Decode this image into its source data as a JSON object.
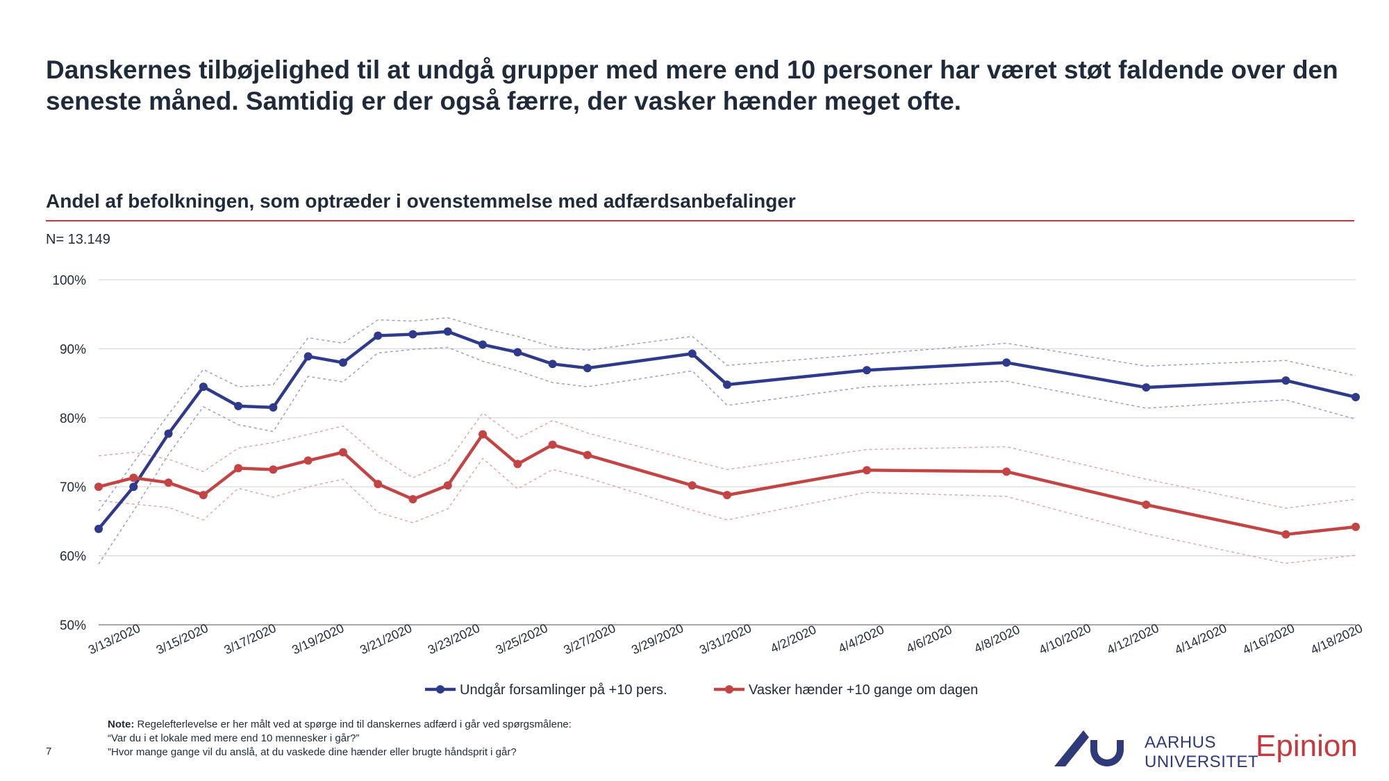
{
  "slide": {
    "headline": "Danskernes tilbøjelighed til at undgå grupper med mere end 10 personer har været støt faldende over den seneste måned. Samtidig er der også færre, der vasker hænder meget ofte.",
    "subtitle": "Andel af befolkningen, som optræder i ovenstemmelse med adfærdsanbefalinger",
    "n_label": "N= 13.149",
    "note_label": "Note:",
    "note_text": "Regelefterlevelse er her målt ved at spørge ind til danskernes adfærd i går ved spørgsmålene:",
    "note_q1": "“Var du i et lokale med mere end 10 mennesker i går?”",
    "note_q2": "”Hvor mange gange vil du anslå, at du vaskede dine hænder eller brugte håndsprit i går?",
    "page_number": "7",
    "logo_au_line1": "AARHUS",
    "logo_au_line2": "UNIVERSITET",
    "logo_epinion": "Epinion"
  },
  "colors": {
    "series1": "#2e3a8c",
    "series2": "#c44343",
    "rule": "#c9373a",
    "grid": "#d9d9d9",
    "ci1": "#9aa0c8",
    "ci2": "#e5a6a6"
  },
  "chart_data": {
    "type": "line",
    "x_tick_labels": [
      "3/13/2020",
      "3/15/2020",
      "3/17/2020",
      "3/19/2020",
      "3/21/2020",
      "3/23/2020",
      "3/25/2020",
      "3/27/2020",
      "3/29/2020",
      "3/31/2020",
      "4/2/2020",
      "4/4/2020",
      "4/6/2020",
      "4/8/2020",
      "4/10/2020",
      "4/12/2020",
      "4/14/2020",
      "4/16/2020",
      "4/18/2020"
    ],
    "x_range": [
      "2020-03-13",
      "2020-04-18"
    ],
    "y_ticks": [
      "50%",
      "60%",
      "70%",
      "80%",
      "90%",
      "100%"
    ],
    "ylim": [
      50,
      100
    ],
    "grid": true,
    "legend_position": "bottom",
    "series": [
      {
        "name": "Undgår forsamlinger på +10 pers.",
        "points": [
          [
            "2020-03-13",
            63.9
          ],
          [
            "2020-03-14",
            70.0
          ],
          [
            "2020-03-15",
            77.7
          ],
          [
            "2020-03-16",
            84.5
          ],
          [
            "2020-03-17",
            81.7
          ],
          [
            "2020-03-18",
            81.5
          ],
          [
            "2020-03-19",
            88.9
          ],
          [
            "2020-03-20",
            88.0
          ],
          [
            "2020-03-21",
            91.9
          ],
          [
            "2020-03-22",
            92.1
          ],
          [
            "2020-03-23",
            92.5
          ],
          [
            "2020-03-24",
            90.6
          ],
          [
            "2020-03-25",
            89.5
          ],
          [
            "2020-03-26",
            87.8
          ],
          [
            "2020-03-27",
            87.2
          ],
          [
            "2020-03-30",
            89.3
          ],
          [
            "2020-03-31",
            84.8
          ],
          [
            "2020-04-04",
            86.9
          ],
          [
            "2020-04-08",
            88.0
          ],
          [
            "2020-04-12",
            84.4
          ],
          [
            "2020-04-16",
            85.4
          ],
          [
            "2020-04-18",
            83.0
          ]
        ],
        "upper": [
          [
            "2020-03-13",
            66.5
          ],
          [
            "2020-03-14",
            73.5
          ],
          [
            "2020-03-15",
            80.5
          ],
          [
            "2020-03-16",
            87.0
          ],
          [
            "2020-03-17",
            84.5
          ],
          [
            "2020-03-18",
            84.8
          ],
          [
            "2020-03-19",
            91.6
          ],
          [
            "2020-03-20",
            90.8
          ],
          [
            "2020-03-21",
            94.2
          ],
          [
            "2020-03-22",
            94.0
          ],
          [
            "2020-03-23",
            94.5
          ],
          [
            "2020-03-24",
            93.0
          ],
          [
            "2020-03-25",
            91.8
          ],
          [
            "2020-03-26",
            90.3
          ],
          [
            "2020-03-27",
            89.8
          ],
          [
            "2020-03-30",
            91.8
          ],
          [
            "2020-03-31",
            87.6
          ],
          [
            "2020-04-04",
            89.2
          ],
          [
            "2020-04-08",
            90.8
          ],
          [
            "2020-04-12",
            87.5
          ],
          [
            "2020-04-16",
            88.3
          ],
          [
            "2020-04-18",
            86.1
          ]
        ],
        "lower": [
          [
            "2020-03-13",
            58.8
          ],
          [
            "2020-03-14",
            66.5
          ],
          [
            "2020-03-15",
            74.7
          ],
          [
            "2020-03-16",
            81.6
          ],
          [
            "2020-03-17",
            79.0
          ],
          [
            "2020-03-18",
            78.0
          ],
          [
            "2020-03-19",
            86.0
          ],
          [
            "2020-03-20",
            85.2
          ],
          [
            "2020-03-21",
            89.4
          ],
          [
            "2020-03-22",
            89.9
          ],
          [
            "2020-03-23",
            90.2
          ],
          [
            "2020-03-24",
            88.2
          ],
          [
            "2020-03-25",
            86.8
          ],
          [
            "2020-03-26",
            85.1
          ],
          [
            "2020-03-27",
            84.5
          ],
          [
            "2020-03-30",
            86.8
          ],
          [
            "2020-03-31",
            81.8
          ],
          [
            "2020-04-04",
            84.5
          ],
          [
            "2020-04-08",
            85.3
          ],
          [
            "2020-04-12",
            81.4
          ],
          [
            "2020-04-16",
            82.6
          ],
          [
            "2020-04-18",
            79.8
          ]
        ]
      },
      {
        "name": "Vasker hænder +10 gange om dagen",
        "points": [
          [
            "2020-03-13",
            70.0
          ],
          [
            "2020-03-14",
            71.3
          ],
          [
            "2020-03-15",
            70.6
          ],
          [
            "2020-03-16",
            68.8
          ],
          [
            "2020-03-17",
            72.7
          ],
          [
            "2020-03-18",
            72.5
          ],
          [
            "2020-03-19",
            73.8
          ],
          [
            "2020-03-20",
            75.0
          ],
          [
            "2020-03-21",
            70.4
          ],
          [
            "2020-03-22",
            68.2
          ],
          [
            "2020-03-23",
            70.2
          ],
          [
            "2020-03-24",
            77.6
          ],
          [
            "2020-03-25",
            73.3
          ],
          [
            "2020-03-26",
            76.1
          ],
          [
            "2020-03-27",
            74.6
          ],
          [
            "2020-03-30",
            70.2
          ],
          [
            "2020-03-31",
            68.8
          ],
          [
            "2020-04-04",
            72.4
          ],
          [
            "2020-04-08",
            72.2
          ],
          [
            "2020-04-12",
            67.4
          ],
          [
            "2020-04-16",
            63.1
          ],
          [
            "2020-04-18",
            64.2
          ]
        ],
        "upper": [
          [
            "2020-03-13",
            74.5
          ],
          [
            "2020-03-14",
            75.0
          ],
          [
            "2020-03-15",
            74.0
          ],
          [
            "2020-03-16",
            72.2
          ],
          [
            "2020-03-17",
            75.6
          ],
          [
            "2020-03-18",
            76.4
          ],
          [
            "2020-03-19",
            77.6
          ],
          [
            "2020-03-20",
            78.8
          ],
          [
            "2020-03-21",
            74.5
          ],
          [
            "2020-03-22",
            71.3
          ],
          [
            "2020-03-23",
            73.6
          ],
          [
            "2020-03-24",
            80.7
          ],
          [
            "2020-03-25",
            77.0
          ],
          [
            "2020-03-26",
            79.6
          ],
          [
            "2020-03-27",
            77.8
          ],
          [
            "2020-03-30",
            73.8
          ],
          [
            "2020-03-31",
            72.5
          ],
          [
            "2020-04-04",
            75.4
          ],
          [
            "2020-04-08",
            75.8
          ],
          [
            "2020-04-12",
            71.1
          ],
          [
            "2020-04-16",
            66.9
          ],
          [
            "2020-04-18",
            68.2
          ]
        ],
        "lower": [
          [
            "2020-03-13",
            68.0
          ],
          [
            "2020-03-14",
            67.5
          ],
          [
            "2020-03-15",
            67.0
          ],
          [
            "2020-03-16",
            65.2
          ],
          [
            "2020-03-17",
            69.8
          ],
          [
            "2020-03-18",
            68.5
          ],
          [
            "2020-03-19",
            70.0
          ],
          [
            "2020-03-20",
            71.1
          ],
          [
            "2020-03-21",
            66.3
          ],
          [
            "2020-03-22",
            64.8
          ],
          [
            "2020-03-23",
            66.8
          ],
          [
            "2020-03-24",
            74.1
          ],
          [
            "2020-03-25",
            69.7
          ],
          [
            "2020-03-26",
            72.5
          ],
          [
            "2020-03-27",
            71.3
          ],
          [
            "2020-03-30",
            66.6
          ],
          [
            "2020-03-31",
            65.2
          ],
          [
            "2020-04-04",
            69.2
          ],
          [
            "2020-04-08",
            68.6
          ],
          [
            "2020-04-12",
            63.2
          ],
          [
            "2020-04-16",
            58.9
          ],
          [
            "2020-04-18",
            60.1
          ]
        ]
      }
    ]
  }
}
